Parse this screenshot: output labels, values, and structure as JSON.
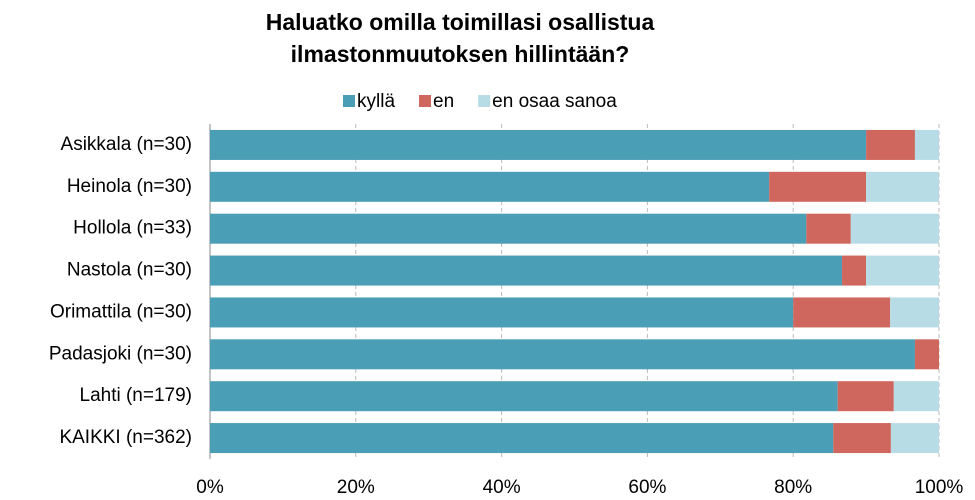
{
  "chart_data": {
    "type": "stacked_barh",
    "title": "Haluatko omilla toimillasi osallistua ilmastonmuutoksen hillintään?",
    "categories": [
      "Asikkala (n=30)",
      "Heinola (n=30)",
      "Hollola (n=33)",
      "Nastola (n=30)",
      "Orimattila (n=30)",
      "Padasjoki (n=30)",
      "Lahti (n=179)",
      "KAIKKI (n=362)"
    ],
    "series": [
      {
        "name": "kyllä",
        "color": "#4a9eb5",
        "values": [
          90,
          76.7,
          81.8,
          86.7,
          80,
          96.7,
          86.1,
          85.5
        ]
      },
      {
        "name": "en",
        "color": "#d0675f",
        "values": [
          6.7,
          13.3,
          6.1,
          3.3,
          13.3,
          3.3,
          7.7,
          7.9
        ]
      },
      {
        "name": "en osaa sanoa",
        "color": "#b8dce6",
        "values": [
          3.3,
          10,
          12.1,
          10,
          6.7,
          0,
          6.2,
          6.6
        ]
      }
    ],
    "xlim": [
      0,
      100
    ],
    "xticks": [
      {
        "value": 0,
        "label": "0%"
      },
      {
        "value": 20,
        "label": "20%"
      },
      {
        "value": 40,
        "label": "40%"
      },
      {
        "value": 60,
        "label": "60%"
      },
      {
        "value": 80,
        "label": "80%"
      },
      {
        "value": 100,
        "label": "100%"
      }
    ],
    "grid": true,
    "legend": "top"
  }
}
